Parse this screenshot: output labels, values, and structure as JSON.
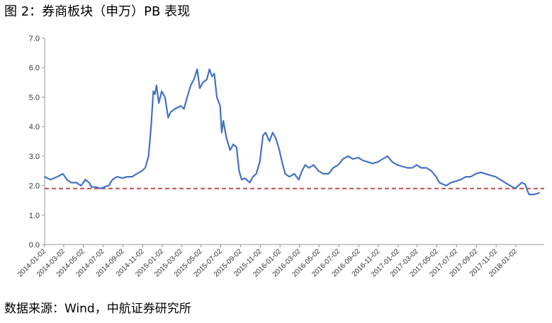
{
  "figure_title": "图 2：券商板块（申万）PB 表现",
  "source_note": "数据来源：Wind，中航证券研究所",
  "colors": {
    "series": "#4472c4",
    "reference": "#c0504d",
    "axis": "#999999"
  },
  "chart_data": {
    "type": "line",
    "ylim": [
      0,
      7
    ],
    "yticks": [
      "0.0",
      "1.0",
      "2.0",
      "3.0",
      "4.0",
      "5.0",
      "6.0",
      "7.0"
    ],
    "xlim": [
      "2014-01-02",
      "2018-03-31"
    ],
    "xticks": [
      "2014-01-02",
      "2014-03-02",
      "2014-05-02",
      "2014-07-02",
      "2014-09-02",
      "2014-11-02",
      "2015-01-02",
      "2015-03-02",
      "2015-05-02",
      "2015-07-02",
      "2015-09-02",
      "2015-11-02",
      "2016-01-02",
      "2016-03-02",
      "2016-05-02",
      "2016-07-02",
      "2016-09-02",
      "2016-11-02",
      "2017-01-02",
      "2017-03-02",
      "2017-05-02",
      "2017-07-02",
      "2017-09-02",
      "2017-11-02",
      "2018-01-02"
    ],
    "reference_line": 1.9,
    "series": [
      {
        "points": [
          [
            "2014-01-02",
            2.3
          ],
          [
            "2014-01-20",
            2.2
          ],
          [
            "2014-02-10",
            2.3
          ],
          [
            "2014-02-28",
            2.4
          ],
          [
            "2014-03-12",
            2.2
          ],
          [
            "2014-03-25",
            2.1
          ],
          [
            "2014-04-10",
            2.1
          ],
          [
            "2014-04-25",
            2.0
          ],
          [
            "2014-05-08",
            2.2
          ],
          [
            "2014-05-20",
            2.1
          ],
          [
            "2014-05-28",
            1.95
          ],
          [
            "2014-06-10",
            1.95
          ],
          [
            "2014-06-25",
            1.9
          ],
          [
            "2014-07-05",
            1.95
          ],
          [
            "2014-07-20",
            2.0
          ],
          [
            "2014-07-31",
            2.2
          ],
          [
            "2014-08-15",
            2.3
          ],
          [
            "2014-08-31",
            2.25
          ],
          [
            "2014-09-15",
            2.3
          ],
          [
            "2014-09-30",
            2.3
          ],
          [
            "2014-10-15",
            2.4
          ],
          [
            "2014-10-31",
            2.5
          ],
          [
            "2014-11-10",
            2.6
          ],
          [
            "2014-11-20",
            3.0
          ],
          [
            "2014-11-28",
            4.0
          ],
          [
            "2014-12-05",
            5.2
          ],
          [
            "2014-12-10",
            5.1
          ],
          [
            "2014-12-15",
            5.4
          ],
          [
            "2014-12-22",
            4.8
          ],
          [
            "2014-12-31",
            5.2
          ],
          [
            "2015-01-10",
            5.0
          ],
          [
            "2015-01-20",
            4.3
          ],
          [
            "2015-01-28",
            4.5
          ],
          [
            "2015-02-10",
            4.6
          ],
          [
            "2015-02-28",
            4.7
          ],
          [
            "2015-03-10",
            4.6
          ],
          [
            "2015-03-20",
            5.0
          ],
          [
            "2015-03-31",
            5.4
          ],
          [
            "2015-04-10",
            5.6
          ],
          [
            "2015-04-20",
            5.95
          ],
          [
            "2015-04-28",
            5.3
          ],
          [
            "2015-05-08",
            5.5
          ],
          [
            "2015-05-20",
            5.6
          ],
          [
            "2015-05-28",
            5.95
          ],
          [
            "2015-06-05",
            5.7
          ],
          [
            "2015-06-12",
            5.8
          ],
          [
            "2015-06-20",
            5.0
          ],
          [
            "2015-06-30",
            4.7
          ],
          [
            "2015-07-05",
            3.8
          ],
          [
            "2015-07-10",
            4.2
          ],
          [
            "2015-07-20",
            3.6
          ],
          [
            "2015-07-31",
            3.2
          ],
          [
            "2015-08-10",
            3.4
          ],
          [
            "2015-08-20",
            3.3
          ],
          [
            "2015-08-28",
            2.5
          ],
          [
            "2015-09-05",
            2.2
          ],
          [
            "2015-09-15",
            2.25
          ],
          [
            "2015-09-30",
            2.1
          ],
          [
            "2015-10-10",
            2.3
          ],
          [
            "2015-10-20",
            2.4
          ],
          [
            "2015-10-31",
            2.8
          ],
          [
            "2015-11-10",
            3.7
          ],
          [
            "2015-11-18",
            3.8
          ],
          [
            "2015-11-30",
            3.5
          ],
          [
            "2015-12-10",
            3.8
          ],
          [
            "2015-12-20",
            3.6
          ],
          [
            "2015-12-31",
            3.2
          ],
          [
            "2016-01-08",
            2.8
          ],
          [
            "2016-01-18",
            2.4
          ],
          [
            "2016-01-31",
            2.3
          ],
          [
            "2016-02-15",
            2.4
          ],
          [
            "2016-02-29",
            2.2
          ],
          [
            "2016-03-10",
            2.5
          ],
          [
            "2016-03-20",
            2.7
          ],
          [
            "2016-03-31",
            2.6
          ],
          [
            "2016-04-15",
            2.7
          ],
          [
            "2016-04-30",
            2.5
          ],
          [
            "2016-05-15",
            2.4
          ],
          [
            "2016-05-31",
            2.4
          ],
          [
            "2016-06-15",
            2.6
          ],
          [
            "2016-06-30",
            2.7
          ],
          [
            "2016-07-15",
            2.9
          ],
          [
            "2016-07-31",
            3.0
          ],
          [
            "2016-08-15",
            2.9
          ],
          [
            "2016-08-31",
            2.95
          ],
          [
            "2016-09-15",
            2.85
          ],
          [
            "2016-09-30",
            2.8
          ],
          [
            "2016-10-15",
            2.75
          ],
          [
            "2016-10-31",
            2.8
          ],
          [
            "2016-11-15",
            2.9
          ],
          [
            "2016-11-30",
            3.0
          ],
          [
            "2016-12-15",
            2.8
          ],
          [
            "2016-12-31",
            2.7
          ],
          [
            "2017-01-15",
            2.65
          ],
          [
            "2017-01-31",
            2.6
          ],
          [
            "2017-02-15",
            2.6
          ],
          [
            "2017-02-28",
            2.7
          ],
          [
            "2017-03-15",
            2.6
          ],
          [
            "2017-03-31",
            2.6
          ],
          [
            "2017-04-15",
            2.5
          ],
          [
            "2017-04-30",
            2.3
          ],
          [
            "2017-05-10",
            2.1
          ],
          [
            "2017-05-31",
            2.0
          ],
          [
            "2017-06-15",
            2.1
          ],
          [
            "2017-06-30",
            2.15
          ],
          [
            "2017-07-15",
            2.2
          ],
          [
            "2017-07-31",
            2.3
          ],
          [
            "2017-08-15",
            2.3
          ],
          [
            "2017-08-31",
            2.4
          ],
          [
            "2017-09-15",
            2.45
          ],
          [
            "2017-09-30",
            2.4
          ],
          [
            "2017-10-15",
            2.35
          ],
          [
            "2017-10-31",
            2.3
          ],
          [
            "2017-11-15",
            2.2
          ],
          [
            "2017-11-30",
            2.1
          ],
          [
            "2017-12-15",
            2.0
          ],
          [
            "2017-12-31",
            1.9
          ],
          [
            "2018-01-10",
            2.0
          ],
          [
            "2018-01-20",
            2.1
          ],
          [
            "2018-01-31",
            2.05
          ],
          [
            "2018-02-06",
            1.85
          ],
          [
            "2018-02-12",
            1.7
          ],
          [
            "2018-02-28",
            1.7
          ],
          [
            "2018-03-15",
            1.75
          ]
        ]
      }
    ]
  }
}
